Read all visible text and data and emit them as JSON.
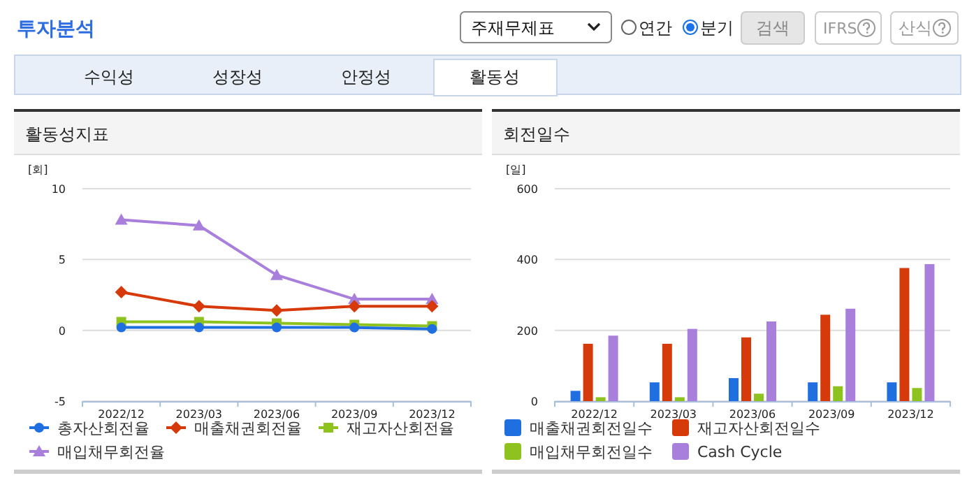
{
  "chart_data": [
    {
      "type": "other",
      "title": "투자분석",
      "annotations": [
        "주재무제표",
        "연간",
        "분기",
        "검색",
        "IFRS",
        "산식",
        "수익성",
        "성장성",
        "안정성",
        "활동성"
      ]
    },
    {
      "type": "line",
      "title": "활동성지표",
      "ylabel": "[회]",
      "categories": [
        "2022/12",
        "2023/03",
        "2023/06",
        "2023/09",
        "2023/12"
      ],
      "ylim": [
        -5,
        10
      ],
      "yticks": [
        -5,
        0,
        5,
        10
      ],
      "grid": "y",
      "legend": "bottom",
      "series": [
        {
          "name": "총자산회전율",
          "color": "#1f6fe0",
          "marker": "circle",
          "values": [
            0.2,
            0.2,
            0.2,
            0.2,
            0.1
          ]
        },
        {
          "name": "매출채권회전율",
          "color": "#d63a0a",
          "marker": "diamond",
          "values": [
            2.7,
            1.7,
            1.4,
            1.7,
            1.7
          ]
        },
        {
          "name": "재고자산회전율",
          "color": "#8dc21f",
          "marker": "square",
          "values": [
            0.6,
            0.6,
            0.5,
            0.4,
            0.3
          ]
        },
        {
          "name": "매입채무회전율",
          "color": "#a97fdc",
          "marker": "triangle",
          "values": [
            7.8,
            7.4,
            3.9,
            2.2,
            2.2
          ]
        }
      ]
    },
    {
      "type": "bar",
      "title": "회전일수",
      "ylabel": "[일]",
      "categories": [
        "2022/12",
        "2023/03",
        "2023/06",
        "2023/09",
        "2023/12"
      ],
      "ylim": [
        0,
        600
      ],
      "yticks": [
        0,
        200,
        400,
        600
      ],
      "grid": "y",
      "legend": "bottom",
      "series": [
        {
          "name": "매출채권회전일수",
          "color": "#1f6fe0",
          "values": [
            29,
            53,
            65,
            53,
            53
          ]
        },
        {
          "name": "재고자산회전일수",
          "color": "#d63a0a",
          "values": [
            162,
            162,
            180,
            244,
            376
          ]
        },
        {
          "name": "매입채무회전일수",
          "color": "#8dc21f",
          "values": [
            11,
            11,
            21,
            42,
            37
          ]
        },
        {
          "name": "Cash Cycle",
          "color": "#a97fdc",
          "values": [
            185,
            204,
            225,
            261,
            387
          ]
        }
      ]
    }
  ]
}
